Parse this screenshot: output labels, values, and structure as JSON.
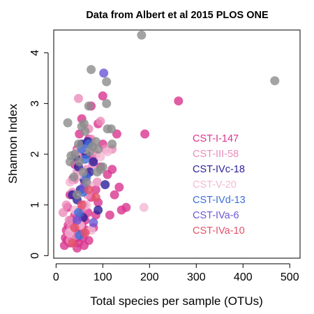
{
  "chart_data": {
    "type": "scatter",
    "title": "Data from Albert et al 2015 PLOS ONE",
    "xlabel": "Total species per sample (OTUs)",
    "ylabel": "Shannon Index",
    "xlim": [
      -5,
      522
    ],
    "ylim": [
      -0.05,
      4.45
    ],
    "xticks": [
      0,
      100,
      200,
      300,
      400,
      500
    ],
    "yticks": [
      0,
      1,
      2,
      3,
      4
    ],
    "grid": false,
    "legend_position": "center-right",
    "series": [
      {
        "name": "CST-I-147",
        "color": "#d9348e",
        "points": [
          [
            18,
            0.2
          ],
          [
            20,
            0.35
          ],
          [
            22,
            0.5
          ],
          [
            24,
            0.3
          ],
          [
            26,
            0.6
          ],
          [
            28,
            0.45
          ],
          [
            30,
            0.25
          ],
          [
            32,
            0.7
          ],
          [
            34,
            0.4
          ],
          [
            36,
            0.55
          ],
          [
            38,
            0.3
          ],
          [
            40,
            0.8
          ],
          [
            42,
            0.5
          ],
          [
            44,
            0.35
          ],
          [
            46,
            0.65
          ],
          [
            48,
            0.25
          ],
          [
            50,
            0.45
          ],
          [
            52,
            0.9
          ],
          [
            55,
            0.6
          ],
          [
            58,
            0.35
          ],
          [
            60,
            1.0
          ],
          [
            62,
            0.7
          ],
          [
            65,
            0.5
          ],
          [
            68,
            0.85
          ],
          [
            70,
            0.3
          ],
          [
            75,
            1.15
          ],
          [
            80,
            0.55
          ],
          [
            85,
            0.8
          ],
          [
            25,
            0.95
          ],
          [
            30,
            1.2
          ],
          [
            35,
            1.5
          ],
          [
            40,
            1.8
          ],
          [
            45,
            2.1
          ],
          [
            50,
            2.4
          ],
          [
            55,
            2.7
          ],
          [
            60,
            2.0
          ],
          [
            65,
            1.6
          ],
          [
            70,
            2.3
          ],
          [
            75,
            2.95
          ],
          [
            80,
            1.9
          ],
          [
            85,
            1.3
          ],
          [
            90,
            2.6
          ],
          [
            95,
            1.75
          ],
          [
            100,
            2.2
          ],
          [
            110,
            1.6
          ],
          [
            120,
            1.7
          ],
          [
            125,
            1.2
          ],
          [
            130,
            2.4
          ],
          [
            135,
            1.35
          ],
          [
            140,
            0.9
          ],
          [
            150,
            0.95
          ],
          [
            100,
            3.15
          ],
          [
            190,
            2.4
          ],
          [
            262,
            3.05
          ],
          [
            115,
            0.8
          ],
          [
            90,
            1.05
          ],
          [
            60,
            0.2
          ],
          [
            45,
            0.15
          ]
        ]
      },
      {
        "name": "CST-III-58",
        "color": "#ec8cbc",
        "points": [
          [
            15,
            0.85
          ],
          [
            22,
            1.0
          ],
          [
            28,
            0.7
          ],
          [
            35,
            1.25
          ],
          [
            40,
            1.5
          ],
          [
            45,
            1.65
          ],
          [
            50,
            1.9
          ],
          [
            55,
            2.15
          ],
          [
            60,
            1.4
          ],
          [
            65,
            1.7
          ],
          [
            70,
            2.5
          ],
          [
            78,
            1.8
          ],
          [
            85,
            2.0
          ],
          [
            95,
            2.65
          ],
          [
            105,
            2.1
          ],
          [
            120,
            2.1
          ],
          [
            48,
            3.1
          ],
          [
            75,
            2.3
          ],
          [
            32,
            0.55
          ],
          [
            58,
            0.95
          ],
          [
            68,
            1.2
          ],
          [
            88,
            1.45
          ],
          [
            30,
            0.3
          ],
          [
            42,
            0.4
          ]
        ]
      },
      {
        "name": "CST-IVc-18",
        "color": "#2a1f9a",
        "points": [
          [
            35,
            1.2
          ],
          [
            42,
            1.95
          ],
          [
            48,
            1.75
          ],
          [
            55,
            2.2
          ],
          [
            60,
            1.5
          ],
          [
            65,
            2.0
          ],
          [
            72,
            1.65
          ],
          [
            80,
            1.85
          ],
          [
            90,
            0.9
          ],
          [
            105,
            1.4
          ],
          [
            58,
            0.75
          ],
          [
            45,
            1.1
          ],
          [
            68,
            2.25
          ],
          [
            52,
            1.3
          ]
        ]
      },
      {
        "name": "CST-V-20",
        "color": "#f4b8d4",
        "points": [
          [
            30,
            1.45
          ],
          [
            45,
            2.05
          ],
          [
            55,
            1.6
          ],
          [
            62,
            2.1
          ],
          [
            70,
            1.4
          ],
          [
            80,
            2.15
          ],
          [
            95,
            1.95
          ],
          [
            110,
            2.05
          ],
          [
            188,
            0.95
          ],
          [
            40,
            0.9
          ],
          [
            52,
            0.6
          ],
          [
            65,
            1.0
          ],
          [
            75,
            0.5
          ],
          [
            28,
            0.45
          ]
        ]
      },
      {
        "name": "CST-IVd-13",
        "color": "#3b6fd8",
        "points": [
          [
            48,
            0.85
          ],
          [
            50,
            0.4
          ],
          [
            58,
            1.25
          ],
          [
            62,
            1.9
          ],
          [
            70,
            2.2
          ],
          [
            65,
            1.55
          ],
          [
            55,
            2.1
          ]
        ]
      },
      {
        "name": "CST-IVa-6",
        "color": "#6c55d6",
        "points": [
          [
            102,
            3.6
          ],
          [
            80,
            0.65
          ],
          [
            60,
            1.35
          ],
          [
            45,
            0.7
          ]
        ]
      },
      {
        "name": "CST-IVa-10",
        "color": "#e25268",
        "points": [
          [
            40,
            0.55
          ],
          [
            55,
            1.0
          ],
          [
            70,
            1.3
          ],
          [
            85,
            1.15
          ],
          [
            35,
            0.25
          ],
          [
            62,
            0.45
          ]
        ]
      },
      {
        "name": "",
        "color": "#8c8c8c",
        "points": [
          [
            183,
            4.35
          ],
          [
            468,
            3.45
          ],
          [
            75,
            3.67
          ],
          [
            108,
            3.0
          ],
          [
            108,
            3.43
          ],
          [
            30,
            1.85
          ],
          [
            32,
            1.97
          ],
          [
            40,
            2.0
          ],
          [
            48,
            2.2
          ],
          [
            55,
            2.55
          ],
          [
            60,
            2.6
          ],
          [
            62,
            2.45
          ],
          [
            70,
            2.95
          ],
          [
            78,
            2.15
          ],
          [
            85,
            2.25
          ],
          [
            90,
            2.1
          ],
          [
            95,
            1.7
          ],
          [
            118,
            2.5
          ],
          [
            120,
            2.2
          ],
          [
            25,
            2.62
          ],
          [
            38,
            1.55
          ],
          [
            45,
            1.2
          ],
          [
            50,
            1.85
          ],
          [
            58,
            1.65
          ],
          [
            65,
            1.45
          ],
          [
            72,
            2.05
          ],
          [
            100,
            1.75
          ],
          [
            88,
            1.65
          ],
          [
            110,
            2.5
          ]
        ]
      }
    ]
  }
}
